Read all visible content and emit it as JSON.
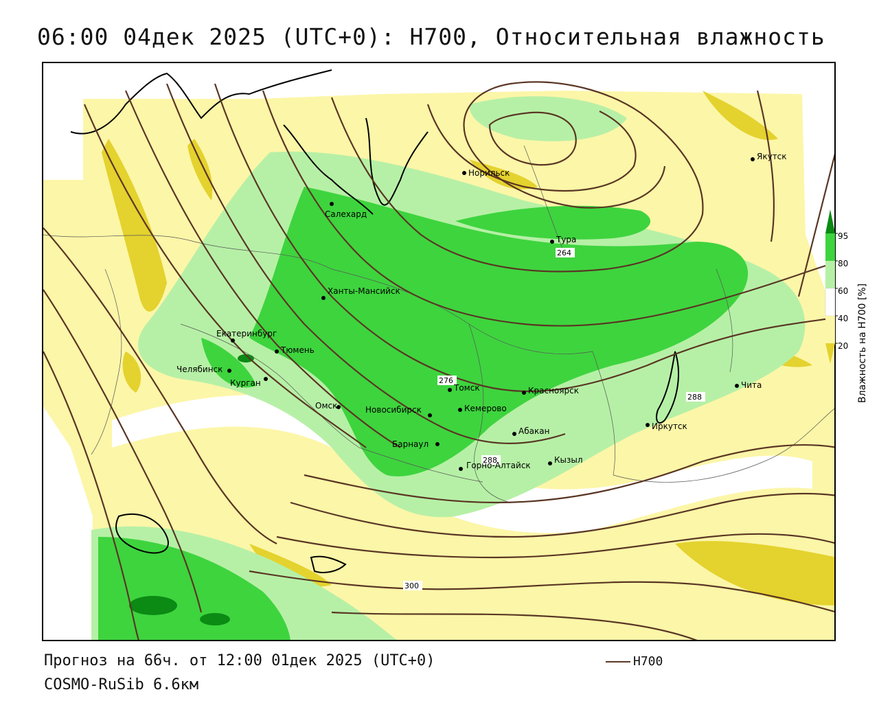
{
  "title": "06:00 04дек 2025 (UTC+0): H700, Относительная влажность",
  "footer": {
    "forecast": "Прогноз на 66ч. от 12:00 01дек 2025 (UTC+0)",
    "model": "COSMO-RuSib 6.6км",
    "contour_key": "H700"
  },
  "colors": {
    "green_dark": "#0b8a14",
    "green": "#3ed43e",
    "green_light": "#b6f0a6",
    "white": "#ffffff",
    "yellow_light": "#fcf6a8",
    "yellow": "#e4d22e",
    "contour": "#5a3624"
  },
  "legend": {
    "title": "Влажность на H700 [%]",
    "ticks": [
      "95",
      "80",
      "60",
      "40",
      "20"
    ]
  },
  "contour_labels": [
    "264",
    "276",
    "288",
    "300",
    "288"
  ],
  "cities": [
    {
      "name": "Норильск"
    },
    {
      "name": "Якутск"
    },
    {
      "name": "Салехард"
    },
    {
      "name": "Тура"
    },
    {
      "name": "Ханты-Мансийск"
    },
    {
      "name": "Екатеринбург"
    },
    {
      "name": "Тюмень"
    },
    {
      "name": "Челябинск"
    },
    {
      "name": "Курган"
    },
    {
      "name": "Омск"
    },
    {
      "name": "Томск"
    },
    {
      "name": "Красноярск"
    },
    {
      "name": "Новосибирск"
    },
    {
      "name": "Кемерово"
    },
    {
      "name": "Абакан"
    },
    {
      "name": "Барнаул"
    },
    {
      "name": "Горно-Алтайск"
    },
    {
      "name": "Кызыл"
    },
    {
      "name": "Иркутск"
    },
    {
      "name": "Чита"
    }
  ]
}
